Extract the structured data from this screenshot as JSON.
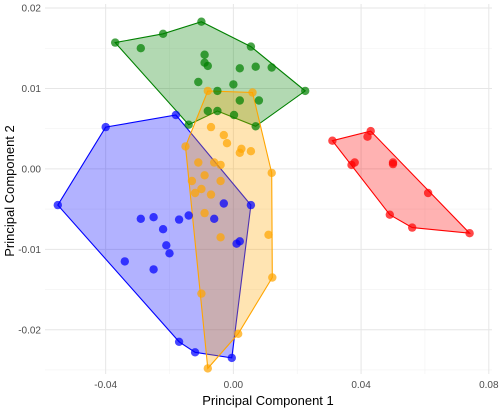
{
  "chart_data": {
    "type": "scatter",
    "xlabel": "Principal Component 1",
    "ylabel": "Principal Component 2",
    "xlim": [
      -0.059,
      0.081
    ],
    "ylim": [
      -0.0255,
      0.0205
    ],
    "x_ticks": [
      -0.04,
      0.0,
      0.04,
      0.08
    ],
    "x_tick_labels": [
      "-0.04",
      "0.00",
      "0.04",
      "0.08"
    ],
    "y_ticks": [
      -0.02,
      -0.01,
      0.0,
      0.01,
      0.02
    ],
    "y_tick_labels": [
      "-0.02",
      "-0.01",
      "0.00",
      "0.01",
      "0.02"
    ],
    "grid": true,
    "series": [
      {
        "color": "#0000ff",
        "hull": [
          [
            -0.055,
            -0.0045
          ],
          [
            -0.04,
            0.0052
          ],
          [
            -0.018,
            0.0067
          ],
          [
            0.0055,
            -0.0045
          ],
          [
            -0.0005,
            -0.0235
          ],
          [
            -0.012,
            -0.0228
          ],
          [
            -0.017,
            -0.0215
          ]
        ],
        "points": [
          [
            -0.055,
            -0.0045
          ],
          [
            -0.04,
            0.0052
          ],
          [
            -0.018,
            0.0067
          ],
          [
            0.0055,
            -0.0045
          ],
          [
            -0.0005,
            -0.0235
          ],
          [
            -0.012,
            -0.0228
          ],
          [
            -0.017,
            -0.0215
          ],
          [
            -0.034,
            -0.0115
          ],
          [
            -0.029,
            -0.0062
          ],
          [
            -0.025,
            -0.006
          ],
          [
            -0.022,
            -0.0075
          ],
          [
            -0.021,
            -0.0095
          ],
          [
            -0.02,
            -0.0105
          ],
          [
            -0.025,
            -0.0125
          ],
          [
            -0.017,
            -0.0063
          ],
          [
            -0.014,
            -0.0058
          ],
          [
            -0.006,
            -0.0062
          ],
          [
            -0.003,
            -0.0043
          ],
          [
            0.002,
            -0.009
          ],
          [
            0.001,
            -0.0093
          ]
        ]
      },
      {
        "color": "#ff0000",
        "hull": [
          [
            0.031,
            0.0035
          ],
          [
            0.043,
            0.0047
          ],
          [
            0.074,
            -0.008
          ],
          [
            0.056,
            -0.0073
          ],
          [
            0.049,
            -0.0057
          ]
        ],
        "points": [
          [
            0.031,
            0.0035
          ],
          [
            0.043,
            0.0047
          ],
          [
            0.074,
            -0.008
          ],
          [
            0.056,
            -0.0073
          ],
          [
            0.049,
            -0.0057
          ],
          [
            0.037,
            0.0005
          ],
          [
            0.038,
            0.0008
          ],
          [
            0.042,
            0.004
          ],
          [
            0.05,
            0.0006
          ],
          [
            0.05,
            0.0008
          ],
          [
            0.061,
            -0.003
          ]
        ]
      },
      {
        "color": "#008000",
        "hull": [
          [
            -0.037,
            0.0157
          ],
          [
            -0.022,
            0.0168
          ],
          [
            -0.01,
            0.0183
          ],
          [
            0.0055,
            0.0152
          ],
          [
            0.0225,
            0.0097
          ],
          [
            0.007,
            0.0053
          ],
          [
            -0.005,
            0.0072
          ],
          [
            -0.014,
            0.0055
          ]
        ],
        "points": [
          [
            -0.037,
            0.0157
          ],
          [
            -0.022,
            0.0168
          ],
          [
            -0.01,
            0.0183
          ],
          [
            0.0055,
            0.0152
          ],
          [
            0.0225,
            0.0097
          ],
          [
            0.007,
            0.0053
          ],
          [
            -0.014,
            0.0055
          ],
          [
            -0.029,
            0.015
          ],
          [
            -0.009,
            0.0142
          ],
          [
            -0.009,
            0.0132
          ],
          [
            -0.008,
            0.0128
          ],
          [
            0.002,
            0.0125
          ],
          [
            0.007,
            0.0127
          ],
          [
            0.012,
            0.0126
          ],
          [
            -0.011,
            0.0108
          ],
          [
            0.0,
            0.0105
          ],
          [
            -0.005,
            0.0097
          ],
          [
            0.002,
            0.0085
          ],
          [
            0.008,
            0.0085
          ],
          [
            -0.008,
            0.0072
          ],
          [
            -0.005,
            0.0072
          ],
          [
            0.0002,
            0.0067
          ]
        ]
      },
      {
        "color": "#ffa500",
        "hull": [
          [
            -0.008,
            0.0097
          ],
          [
            0.006,
            0.0095
          ],
          [
            0.012,
            -0.0005
          ],
          [
            0.0122,
            -0.0135
          ],
          [
            0.0015,
            -0.0205
          ],
          [
            -0.008,
            -0.0248
          ],
          [
            -0.015,
            0.0028
          ]
        ],
        "points": [
          [
            -0.008,
            0.0097
          ],
          [
            0.006,
            0.0095
          ],
          [
            0.012,
            -0.0005
          ],
          [
            0.0122,
            -0.0135
          ],
          [
            0.0015,
            -0.0205
          ],
          [
            -0.008,
            -0.0248
          ],
          [
            -0.015,
            0.0028
          ],
          [
            -0.007,
            0.0052
          ],
          [
            -0.003,
            0.0042
          ],
          [
            -0.002,
            0.0032
          ],
          [
            0.0025,
            0.0025
          ],
          [
            0.0055,
            0.0022
          ],
          [
            0.002,
            0.002
          ],
          [
            -0.011,
            0.0008
          ],
          [
            -0.006,
            0.0008
          ],
          [
            -0.004,
            0.0005
          ],
          [
            -0.009,
            -0.0008
          ],
          [
            -0.004,
            -0.0015
          ],
          [
            -0.013,
            -0.0015
          ],
          [
            -0.01,
            -0.0025
          ],
          [
            -0.012,
            -0.003
          ],
          [
            -0.007,
            -0.0032
          ],
          [
            -0.009,
            -0.0055
          ],
          [
            -0.004,
            -0.0085
          ],
          [
            0.011,
            -0.0082
          ],
          [
            -0.01,
            -0.0155
          ]
        ]
      }
    ]
  }
}
